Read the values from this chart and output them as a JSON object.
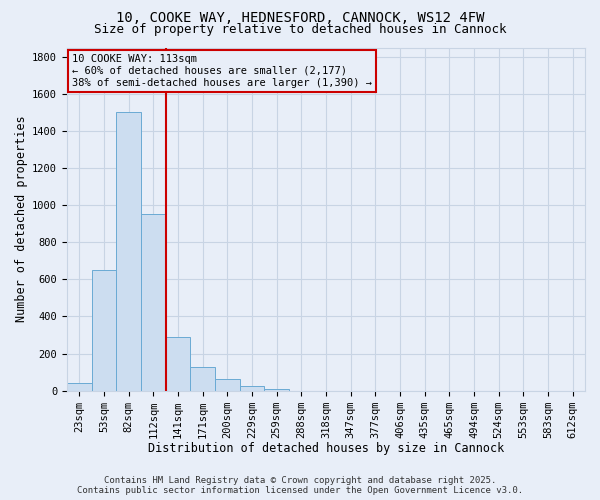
{
  "title_line1": "10, COOKE WAY, HEDNESFORD, CANNOCK, WS12 4FW",
  "title_line2": "Size of property relative to detached houses in Cannock",
  "xlabel": "Distribution of detached houses by size in Cannock",
  "ylabel": "Number of detached properties",
  "bar_values": [
    40,
    650,
    1500,
    950,
    290,
    130,
    60,
    25,
    10,
    0,
    0,
    0,
    0,
    0,
    0,
    0,
    0,
    0,
    0,
    0,
    0
  ],
  "categories": [
    "23sqm",
    "53sqm",
    "82sqm",
    "112sqm",
    "141sqm",
    "171sqm",
    "200sqm",
    "229sqm",
    "259sqm",
    "288sqm",
    "318sqm",
    "347sqm",
    "377sqm",
    "406sqm",
    "435sqm",
    "465sqm",
    "494sqm",
    "524sqm",
    "553sqm",
    "583sqm",
    "612sqm"
  ],
  "bar_color": "#ccddf0",
  "bar_edge_color": "#6aaad4",
  "grid_color": "#c8d4e4",
  "bg_color": "#e8eef8",
  "vline_color": "#cc0000",
  "vline_x_index": 3,
  "annotation_text": "10 COOKE WAY: 113sqm\n← 60% of detached houses are smaller (2,177)\n38% of semi-detached houses are larger (1,390) →",
  "annotation_box_facecolor": "#e8eef8",
  "annotation_box_edgecolor": "#cc0000",
  "ylim": [
    0,
    1850
  ],
  "yticks": [
    0,
    200,
    400,
    600,
    800,
    1000,
    1200,
    1400,
    1600,
    1800
  ],
  "footer_line1": "Contains HM Land Registry data © Crown copyright and database right 2025.",
  "footer_line2": "Contains public sector information licensed under the Open Government Licence v3.0.",
  "title_fontsize": 10,
  "subtitle_fontsize": 9,
  "axis_label_fontsize": 8.5,
  "tick_fontsize": 7.5,
  "annotation_fontsize": 7.5,
  "footer_fontsize": 6.5
}
